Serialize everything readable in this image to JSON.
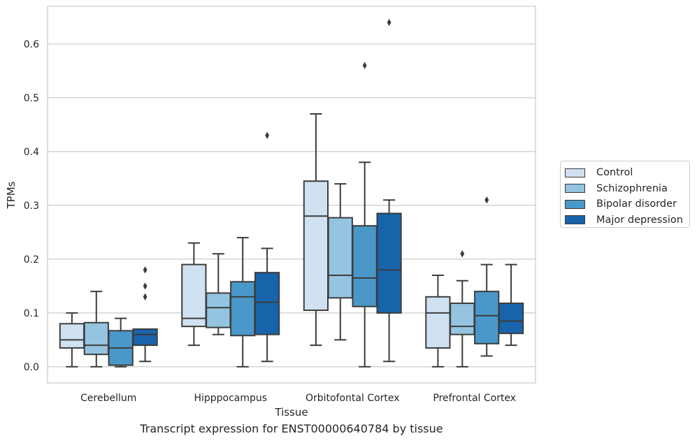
{
  "caption": "Transcript expression for ENST00000640784 by tissue",
  "legend": {
    "placement": "right, outside plot",
    "items": [
      {
        "label": "Control",
        "color": "#d0e1f2"
      },
      {
        "label": "Schizophrenia",
        "color": "#94c4df"
      },
      {
        "label": "Bipolar disorder",
        "color": "#4a98c9"
      },
      {
        "label": "Major depression",
        "color": "#1764ab"
      }
    ]
  },
  "chart_data": {
    "type": "boxplot",
    "xlabel": "Tissue",
    "ylabel": "TPMs",
    "ylim": [
      -0.03,
      0.67
    ],
    "yticks": [
      0.0,
      0.1,
      0.2,
      0.3,
      0.4,
      0.5,
      0.6
    ],
    "ytick_labels": [
      "0.0",
      "0.1",
      "0.2",
      "0.3",
      "0.4",
      "0.5",
      "0.6"
    ],
    "grid": "horizontal",
    "categories": [
      "Cerebellum",
      "Hipppocampus",
      "Orbitofontal Cortex",
      "Prefrontal Cortex"
    ],
    "series": [
      {
        "name": "Control",
        "color": "#d0e1f2",
        "boxes": [
          {
            "whislo": 0.0,
            "q1": 0.035,
            "med": 0.05,
            "q3": 0.08,
            "whishi": 0.1,
            "fliers": []
          },
          {
            "whislo": 0.04,
            "q1": 0.075,
            "med": 0.09,
            "q3": 0.19,
            "whishi": 0.23,
            "fliers": []
          },
          {
            "whislo": 0.04,
            "q1": 0.105,
            "med": 0.28,
            "q3": 0.345,
            "whishi": 0.47,
            "fliers": []
          },
          {
            "whislo": 0.0,
            "q1": 0.035,
            "med": 0.1,
            "q3": 0.13,
            "whishi": 0.17,
            "fliers": []
          }
        ]
      },
      {
        "name": "Schizophrenia",
        "color": "#94c4df",
        "boxes": [
          {
            "whislo": 0.0,
            "q1": 0.023,
            "med": 0.04,
            "q3": 0.082,
            "whishi": 0.14,
            "fliers": []
          },
          {
            "whislo": 0.06,
            "q1": 0.073,
            "med": 0.11,
            "q3": 0.137,
            "whishi": 0.21,
            "fliers": []
          },
          {
            "whislo": 0.05,
            "q1": 0.128,
            "med": 0.17,
            "q3": 0.277,
            "whishi": 0.34,
            "fliers": []
          },
          {
            "whislo": 0.0,
            "q1": 0.06,
            "med": 0.075,
            "q3": 0.118,
            "whishi": 0.16,
            "fliers": [
              0.21
            ]
          }
        ]
      },
      {
        "name": "Bipolar disorder",
        "color": "#4a98c9",
        "boxes": [
          {
            "whislo": 0.0,
            "q1": 0.003,
            "med": 0.035,
            "q3": 0.067,
            "whishi": 0.09,
            "fliers": []
          },
          {
            "whislo": 0.0,
            "q1": 0.058,
            "med": 0.13,
            "q3": 0.158,
            "whishi": 0.24,
            "fliers": []
          },
          {
            "whislo": 0.0,
            "q1": 0.112,
            "med": 0.165,
            "q3": 0.262,
            "whishi": 0.38,
            "fliers": [
              0.56
            ]
          },
          {
            "whislo": 0.02,
            "q1": 0.043,
            "med": 0.095,
            "q3": 0.14,
            "whishi": 0.19,
            "fliers": [
              0.31
            ]
          }
        ]
      },
      {
        "name": "Major depression",
        "color": "#1764ab",
        "boxes": [
          {
            "whislo": 0.01,
            "q1": 0.04,
            "med": 0.06,
            "q3": 0.07,
            "whishi": 0.07,
            "fliers": [
              0.13,
              0.15,
              0.18
            ]
          },
          {
            "whislo": 0.01,
            "q1": 0.06,
            "med": 0.12,
            "q3": 0.175,
            "whishi": 0.22,
            "fliers": [
              0.43
            ]
          },
          {
            "whislo": 0.01,
            "q1": 0.1,
            "med": 0.18,
            "q3": 0.285,
            "whishi": 0.31,
            "fliers": [
              0.64
            ]
          },
          {
            "whislo": 0.04,
            "q1": 0.062,
            "med": 0.085,
            "q3": 0.118,
            "whishi": 0.19,
            "fliers": []
          }
        ]
      }
    ]
  }
}
